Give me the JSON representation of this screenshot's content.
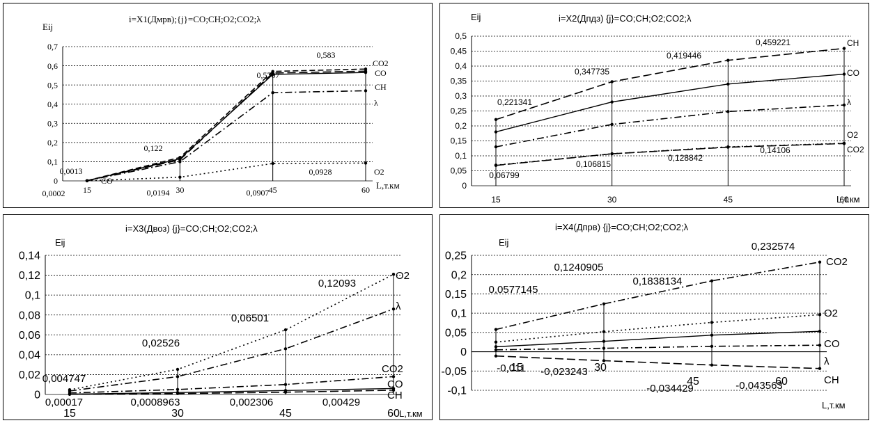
{
  "chart_data": [
    {
      "type": "line",
      "title": "i=X1(Дмрв);{j}=CO;CH;O2;CO2;λ",
      "ylabel": "Eij",
      "xlabel": "L,т.км",
      "x": [
        15,
        30,
        45,
        60
      ],
      "ylim": [
        0,
        0.7
      ],
      "yticks": [
        "0",
        "0,1",
        "0,2",
        "0,3",
        "0,4",
        "0,5",
        "0,6",
        "0,7"
      ],
      "grid": true,
      "series": [
        {
          "name": "CO2",
          "values": [
            0.0013,
            0.122,
            0.5707,
            0.583
          ],
          "style": "dash"
        },
        {
          "name": "CO",
          "values": [
            0.001,
            0.115,
            0.555,
            0.565
          ],
          "style": "solid"
        },
        {
          "name": "CH",
          "values": [
            0.0012,
            0.11,
            0.562,
            0.572
          ],
          "style": "longdash"
        },
        {
          "name": "λ",
          "values": [
            0.0008,
            0.1,
            0.46,
            0.47
          ],
          "style": "dashdot"
        },
        {
          "name": "O2",
          "values": [
            0.0002,
            0.0194,
            0.0907,
            0.0928
          ],
          "style": "dot"
        }
      ],
      "data_labels": [
        "0,0013",
        "0,0002",
        "0,122",
        "0,0194",
        "0,5707",
        "0,0907",
        "0,583",
        "0,0928"
      ],
      "inline_labels": [
        "CO",
        "CO2",
        "CO",
        "CH",
        "λ",
        "O2"
      ]
    },
    {
      "type": "line",
      "title": "i=X2(Дпдз) {j}=CO;CH;O2;CO2;λ",
      "ylabel": "Eij",
      "xlabel": "L,т.км",
      "x": [
        15,
        30,
        45,
        60
      ],
      "ylim": [
        0,
        0.5
      ],
      "yticks": [
        "0",
        "0,05",
        "0,1",
        "0,15",
        "0,2",
        "0,25",
        "0,3",
        "0,35",
        "0,4",
        "0,45",
        "0,5"
      ],
      "grid": true,
      "series": [
        {
          "name": "CH",
          "values": [
            0.221341,
            0.347735,
            0.419446,
            0.459221
          ],
          "style": "longdash"
        },
        {
          "name": "CO",
          "values": [
            0.18,
            0.28,
            0.34,
            0.373
          ],
          "style": "solid"
        },
        {
          "name": "λ",
          "values": [
            0.13,
            0.205,
            0.248,
            0.27
          ],
          "style": "dashdot"
        },
        {
          "name": "O2",
          "values": [
            0.069,
            0.107,
            0.13,
            0.142
          ],
          "style": "dot"
        },
        {
          "name": "CO2",
          "values": [
            0.06799,
            0.106815,
            0.128842,
            0.14106
          ],
          "style": "longdash"
        }
      ],
      "data_labels": [
        "0,221341",
        "0,06799",
        "0,347735",
        "0,106815",
        "0,419446",
        "0,128842",
        "0,459221",
        "0,14106"
      ],
      "inline_labels": [
        "CH",
        "CO",
        "λ",
        "O2",
        "CO2"
      ]
    },
    {
      "type": "line",
      "title": "i=X3(Двоз) {j}=CO;CH;O2;CO2;λ",
      "ylabel": "Eij",
      "xlabel": "L,т.км",
      "x": [
        15,
        30,
        45,
        60
      ],
      "ylim": [
        0,
        0.14
      ],
      "yticks": [
        "0",
        "0,02",
        "0,04",
        "0,06",
        "0,08",
        "0,1",
        "0,12",
        "0,14"
      ],
      "grid": true,
      "series": [
        {
          "name": "O2",
          "values": [
            0.004747,
            0.02526,
            0.06501,
            0.12093
          ],
          "style": "dot"
        },
        {
          "name": "λ",
          "values": [
            0.0035,
            0.018,
            0.046,
            0.086
          ],
          "style": "dashdot"
        },
        {
          "name": "CO2",
          "values": [
            0.0015,
            0.005,
            0.01,
            0.018
          ],
          "style": "dashdot"
        },
        {
          "name": "CO",
          "values": [
            0.0003,
            0.002,
            0.004,
            0.006
          ],
          "style": "solid"
        },
        {
          "name": "CH",
          "values": [
            0.00017,
            0.0008963,
            0.002306,
            0.00429
          ],
          "style": "longdash"
        }
      ],
      "data_labels": [
        "0,004747",
        "0,00017",
        "0,02526",
        "0,0008963",
        "0,06501",
        "0,002306",
        "0,12093",
        "0,00429"
      ],
      "inline_labels": [
        "O2",
        "λ",
        "CO2",
        "CO",
        "CH"
      ]
    },
    {
      "type": "line",
      "title": "i=X4(Дпрв) {j}=CO;CH;O2;CO2;λ",
      "ylabel": "Eij",
      "xlabel": "L,т.км",
      "x": [
        15,
        30,
        45,
        60
      ],
      "ylim": [
        -0.1,
        0.25
      ],
      "yticks": [
        "-0,1",
        "-0,05",
        "0",
        "0,05",
        "0,1",
        "0,15",
        "0,2",
        "0,25"
      ],
      "grid": true,
      "series": [
        {
          "name": "CO2",
          "values": [
            0.0577145,
            0.1240905,
            0.1838134,
            0.232574
          ],
          "style": "dashdot"
        },
        {
          "name": "O2",
          "values": [
            0.025,
            0.052,
            0.076,
            0.096
          ],
          "style": "dot"
        },
        {
          "name": "CO",
          "values": [
            0.013,
            0.027,
            0.043,
            0.053
          ],
          "style": "solid"
        },
        {
          "name": "λ",
          "values": [
            0.005,
            0.009,
            0.014,
            0.017
          ],
          "style": "dashdot"
        },
        {
          "name": "CH",
          "values": [
            -0.011,
            -0.023243,
            -0.034429,
            -0.043563
          ],
          "style": "longdash"
        }
      ],
      "data_labels": [
        "0,0577145",
        "-0,011",
        "0,1240905",
        "-0,023243",
        "0,1838134",
        "-0,034429",
        "0,232574",
        "-0,043563"
      ],
      "inline_labels": [
        "CO2",
        "O2",
        "CO",
        "λ",
        "CH"
      ]
    }
  ]
}
